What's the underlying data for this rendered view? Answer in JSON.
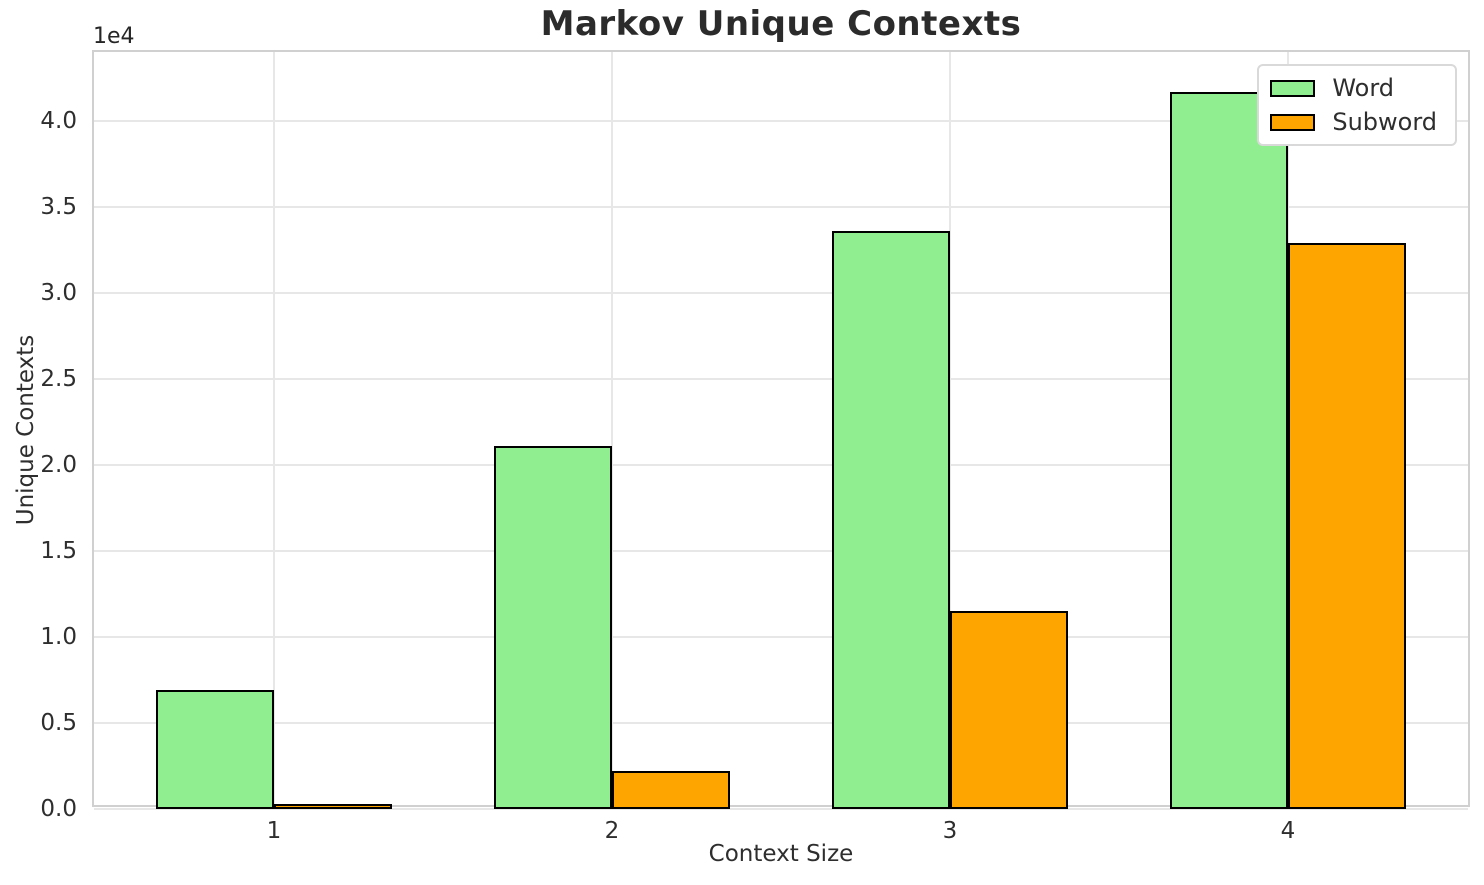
{
  "chart_data": {
    "type": "bar",
    "title": "Markov Unique Contexts",
    "xlabel": "Context Size",
    "ylabel": "Unique Contexts",
    "categories": [
      "1",
      "2",
      "3",
      "4"
    ],
    "series": [
      {
        "name": "Word",
        "color": "#90EE90",
        "values": [
          6900,
          21100,
          33600,
          41700
        ]
      },
      {
        "name": "Subword",
        "color": "#FFA500",
        "values": [
          300,
          2200,
          11500,
          32900
        ]
      }
    ],
    "bar_edge_color": "#000000",
    "ylim": [
      0,
      44000
    ],
    "yticks": [
      0,
      5000,
      10000,
      15000,
      20000,
      25000,
      30000,
      35000,
      40000
    ],
    "ytick_labels": [
      "0.0",
      "0.5",
      "1.0",
      "1.5",
      "2.0",
      "2.5",
      "3.0",
      "3.5",
      "4.0"
    ],
    "y_offset_text": "1e4",
    "grid": true,
    "legend_position": "upper right",
    "legend_labels": [
      "Word",
      "Subword"
    ]
  }
}
